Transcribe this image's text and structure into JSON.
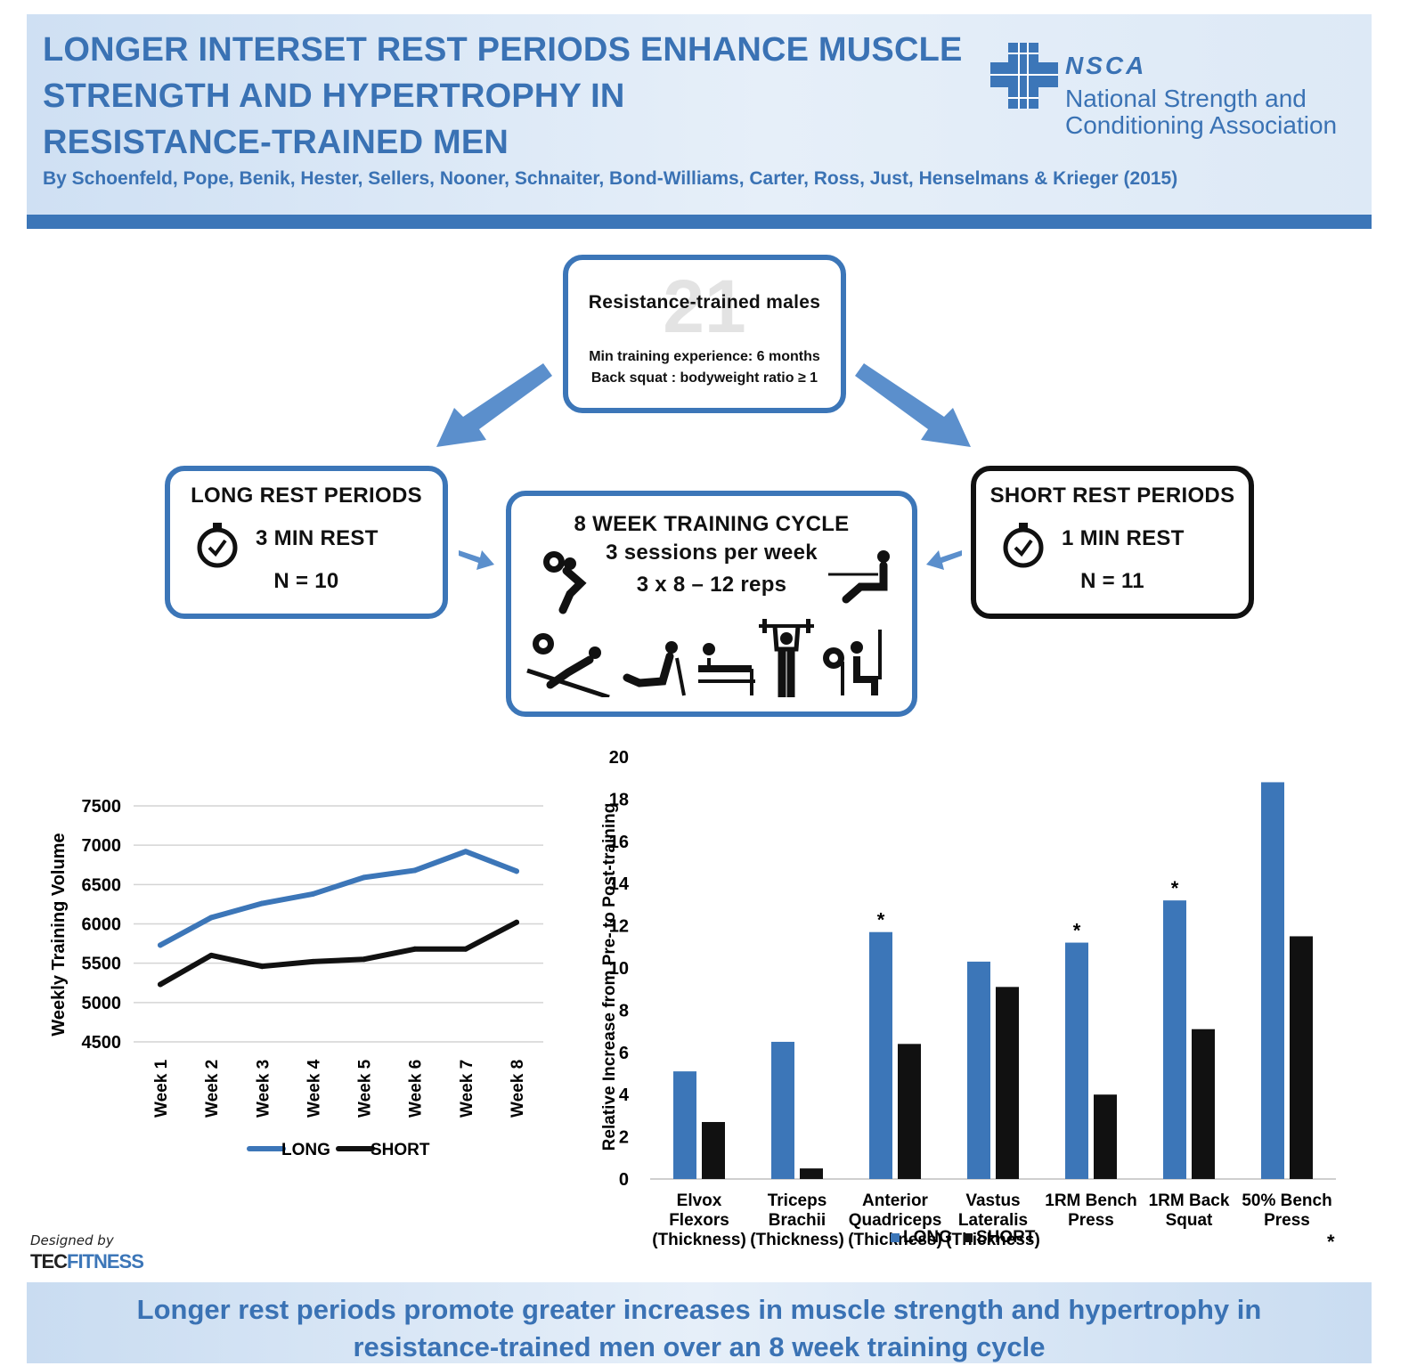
{
  "header": {
    "title_lines": [
      "LONGER INTERSET REST PERIODS ENHANCE MUSCLE",
      "STRENGTH AND HYPERTROPHY IN",
      "RESISTANCE-TRAINED MEN"
    ],
    "authors": "By Schoenfeld, Pope, Benik, Hester, Sellers, Nooner, Schnaiter, Bond-Williams, Carter, Ross, Just, Henselmans & Krieger (2015)",
    "logo_abbr": "NSCA",
    "logo_name_line1": "National Strength and",
    "logo_name_line2": "Conditioning Association"
  },
  "colors": {
    "brand": "#3c76b8",
    "long": "#3c76b8",
    "short": "#111111",
    "header_bg": "#dde9f6"
  },
  "participants": {
    "count_watermark": "21",
    "label": "Resistance-trained males",
    "criteria1": "Min training experience: 6 months",
    "criteria2": "Back squat : bodyweight ratio ≥ 1"
  },
  "long_group": {
    "title": "LONG REST PERIODS",
    "rest": "3 MIN REST",
    "n": "N = 10",
    "icon": "stopwatch-icon"
  },
  "short_group": {
    "title": "SHORT REST PERIODS",
    "rest": "1 MIN REST",
    "n": "N = 11",
    "icon": "stopwatch-icon"
  },
  "training": {
    "title": "8 WEEK TRAINING CYCLE",
    "sessions": "3 sessions per week",
    "reps": "3 x 8 – 12 reps",
    "exercise_icons": [
      "squat-icon",
      "seated-row-icon",
      "incline-press-icon",
      "leg-press-icon",
      "bench-press-icon",
      "overhead-press-icon",
      "lat-pulldown-icon"
    ]
  },
  "credit": {
    "line1": "Designed by",
    "line2": "TEC",
    "line3": "FITNESS"
  },
  "footer": {
    "line1": "Longer rest periods promote greater increases in muscle strength and hypertrophy in",
    "line2": "resistance-trained men over an 8 week training cycle"
  },
  "chart_data": [
    {
      "type": "line",
      "ylabel": "Weekly Training Volume",
      "categories": [
        "Week 1",
        "Week 2",
        "Week 3",
        "Week 4",
        "Week 5",
        "Week 6",
        "Week 7",
        "Week 8"
      ],
      "ylim": [
        4500,
        7500
      ],
      "yticks": [
        4500,
        5000,
        5500,
        6000,
        6500,
        7000,
        7500
      ],
      "grid": true,
      "legend_position": "bottom",
      "series": [
        {
          "name": "LONG",
          "color": "#3c76b8",
          "values": [
            5730,
            6080,
            6260,
            6380,
            6590,
            6680,
            6920,
            6670
          ]
        },
        {
          "name": "SHORT",
          "color": "#111111",
          "values": [
            5230,
            5600,
            5460,
            5520,
            5550,
            5680,
            5680,
            6020
          ]
        }
      ]
    },
    {
      "type": "bar",
      "ylabel": "Relative Increase from Pre- to Post-training",
      "categories": [
        [
          "Elvox",
          "Flexors",
          "(Thickness)"
        ],
        [
          "Triceps",
          "Brachii",
          "(Thickness)"
        ],
        [
          "Anterior",
          "Quadriceps",
          "(Thickness)"
        ],
        [
          "Vastus",
          "Lateralis",
          "(Thickness)"
        ],
        [
          "1RM Bench",
          "Press"
        ],
        [
          "1RM Back",
          "Squat"
        ],
        [
          "50% Bench",
          "Press"
        ]
      ],
      "ylim": [
        0,
        20
      ],
      "yticks": [
        0,
        2,
        4,
        6,
        8,
        10,
        12,
        14,
        16,
        18,
        20
      ],
      "grid": false,
      "legend_position": "bottom",
      "series": [
        {
          "name": "LONG",
          "color": "#3c76b8",
          "values": [
            5.1,
            6.5,
            11.7,
            10.3,
            11.2,
            13.2,
            18.8
          ]
        },
        {
          "name": "SHORT",
          "color": "#111111",
          "values": [
            2.7,
            0.5,
            6.4,
            9.1,
            4.0,
            7.1,
            11.5
          ]
        }
      ],
      "significance_markers": [
        "",
        "",
        "*",
        "",
        "*",
        "*",
        ""
      ],
      "footnote_marker": "*"
    }
  ]
}
